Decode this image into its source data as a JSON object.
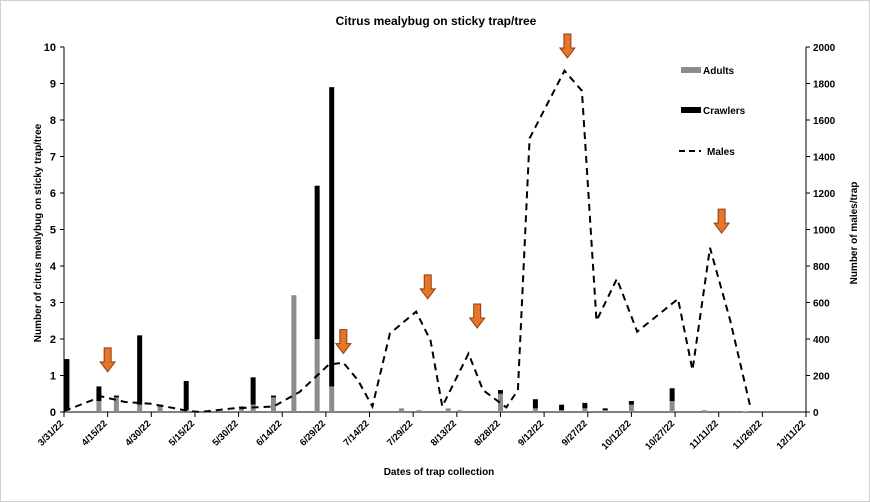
{
  "chart_data": {
    "type": "bar+line",
    "title": "Citrus mealybug on sticky trap/tree",
    "xlabel": "Dates of trap collection",
    "ylabel_left": "Number of citrus mealybug on sticky trap/tree",
    "ylabel_right": "Number of males/trap",
    "y_left_lim": [
      0,
      10
    ],
    "y_right_lim": [
      0,
      2000
    ],
    "y_left_ticks": [
      "0",
      "1",
      "2",
      "3",
      "4",
      "5",
      "6",
      "7",
      "8",
      "9",
      "10"
    ],
    "y_right_ticks": [
      "0",
      "200",
      "400",
      "600",
      "800",
      "1000",
      "1200",
      "1400",
      "1600",
      "1800",
      "2000"
    ],
    "x_ticks": [
      "3/31/22",
      "4/15/22",
      "4/30/22",
      "5/15/22",
      "5/30/22",
      "6/14/22",
      "6/29/22",
      "7/14/22",
      "7/29/22",
      "8/13/22",
      "8/28/22",
      "9/12/22",
      "9/27/22",
      "10/12/22",
      "10/27/22",
      "11/11/22",
      "11/26/22",
      "12/11/22"
    ],
    "x_range_days": [
      0,
      255
    ],
    "legend": [
      "Adults",
      "Crawlers",
      "Males"
    ],
    "legend_position": "top-right",
    "colors": {
      "adults": "#8c8c8c",
      "crawlers": "#000000",
      "males": "#000000",
      "arrow": "#e8742a",
      "arrow_edge": "#8a3f10"
    },
    "bars": [
      {
        "date": "4/1/22",
        "adults": 0.05,
        "crawlers": 1.4
      },
      {
        "date": "4/12/22",
        "adults": 0.3,
        "crawlers": 0.4
      },
      {
        "date": "4/18/22",
        "adults": 0.4,
        "crawlers": 0.05
      },
      {
        "date": "4/26/22",
        "adults": 0.2,
        "crawlers": 1.9
      },
      {
        "date": "5/3/22",
        "adults": 0.15,
        "crawlers": 0.05
      },
      {
        "date": "5/12/22",
        "adults": 0.05,
        "crawlers": 0.8
      },
      {
        "date": "5/31/22",
        "adults": 0.1,
        "crawlers": 0.05
      },
      {
        "date": "6/4/22",
        "adults": 0.2,
        "crawlers": 0.75
      },
      {
        "date": "6/11/22",
        "adults": 0.4,
        "crawlers": 0.05
      },
      {
        "date": "6/18/22",
        "adults": 3.2,
        "crawlers": 0
      },
      {
        "date": "6/26/22",
        "adults": 2.0,
        "crawlers": 4.2
      },
      {
        "date": "7/1/22",
        "adults": 0.7,
        "crawlers": 8.2
      },
      {
        "date": "7/25/22",
        "adults": 0.1,
        "crawlers": 0
      },
      {
        "date": "7/31/22",
        "adults": 0.05,
        "crawlers": 0
      },
      {
        "date": "8/10/22",
        "adults": 0.1,
        "crawlers": 0
      },
      {
        "date": "8/14/22",
        "adults": 0.05,
        "crawlers": 0
      },
      {
        "date": "8/28/22",
        "adults": 0.5,
        "crawlers": 0.1
      },
      {
        "date": "9/9/22",
        "adults": 0.1,
        "crawlers": 0.25
      },
      {
        "date": "9/18/22",
        "adults": 0.05,
        "crawlers": 0.15
      },
      {
        "date": "9/26/22",
        "adults": 0.1,
        "crawlers": 0.15
      },
      {
        "date": "10/3/22",
        "adults": 0.05,
        "crawlers": 0.05
      },
      {
        "date": "10/12/22",
        "adults": 0.2,
        "crawlers": 0.1
      },
      {
        "date": "10/26/22",
        "adults": 0.3,
        "crawlers": 0.35
      },
      {
        "date": "11/6/22",
        "adults": 0.05,
        "crawlers": 0
      },
      {
        "date": "11/20/22",
        "adults": 0.02,
        "crawlers": 0
      }
    ],
    "males": [
      {
        "date": "3/31/22",
        "value": 5
      },
      {
        "date": "4/13/22",
        "value": 85
      },
      {
        "date": "4/21/22",
        "value": 55
      },
      {
        "date": "4/30/22",
        "value": 45
      },
      {
        "date": "5/13/22",
        "value": 5
      },
      {
        "date": "5/17/22",
        "value": 0
      },
      {
        "date": "5/28/22",
        "value": 20
      },
      {
        "date": "6/11/22",
        "value": 30
      },
      {
        "date": "6/20/22",
        "value": 110
      },
      {
        "date": "6/30/22",
        "value": 260
      },
      {
        "date": "7/5/22",
        "value": 270
      },
      {
        "date": "7/10/22",
        "value": 175
      },
      {
        "date": "7/15/22",
        "value": 30
      },
      {
        "date": "7/21/22",
        "value": 430
      },
      {
        "date": "7/30/22",
        "value": 550
      },
      {
        "date": "8/4/22",
        "value": 390
      },
      {
        "date": "8/8/22",
        "value": 30
      },
      {
        "date": "8/17/22",
        "value": 320
      },
      {
        "date": "8/22/22",
        "value": 120
      },
      {
        "date": "8/30/22",
        "value": 25
      },
      {
        "date": "9/3/22",
        "value": 120
      },
      {
        "date": "9/7/22",
        "value": 1500
      },
      {
        "date": "9/19/22",
        "value": 1870
      },
      {
        "date": "9/25/22",
        "value": 1760
      },
      {
        "date": "9/30/22",
        "value": 500
      },
      {
        "date": "10/7/22",
        "value": 730
      },
      {
        "date": "10/14/22",
        "value": 440
      },
      {
        "date": "10/28/22",
        "value": 620
      },
      {
        "date": "11/2/22",
        "value": 230
      },
      {
        "date": "11/8/22",
        "value": 900
      },
      {
        "date": "11/15/22",
        "value": 500
      },
      {
        "date": "11/22/22",
        "value": 20
      }
    ],
    "arrows": [
      {
        "date": "4/15/22",
        "y_left": 1.1
      },
      {
        "date": "7/5/22",
        "y_left": 1.6
      },
      {
        "date": "8/3/22",
        "y_left": 3.1
      },
      {
        "date": "8/20/22",
        "y_left": 2.3
      },
      {
        "date": "9/20/22",
        "y_left": 9.7
      },
      {
        "date": "11/12/22",
        "y_left": 4.9
      }
    ]
  }
}
